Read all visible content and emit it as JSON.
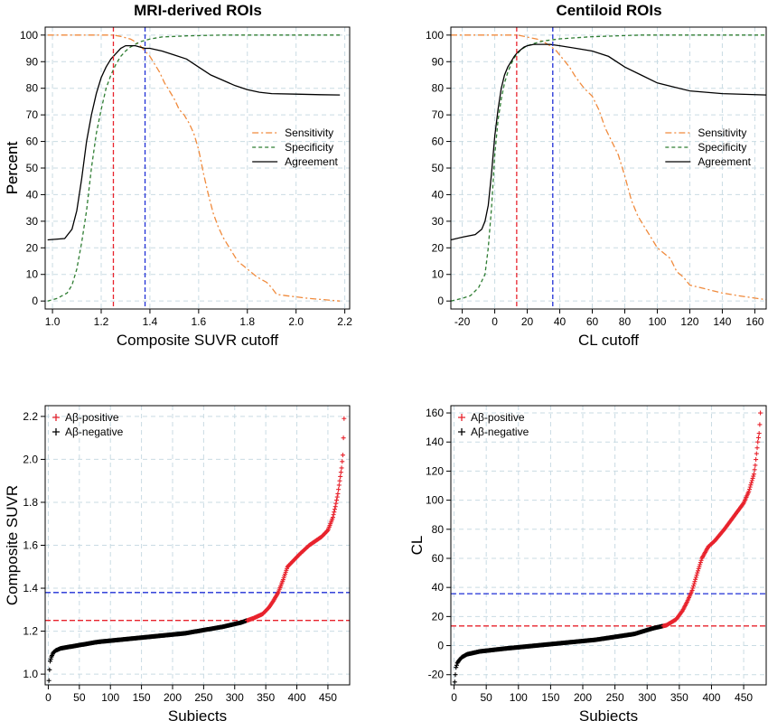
{
  "colors": {
    "sensitivity": "#f08a3c",
    "specificity": "#2e7d32",
    "agreement": "#000000",
    "blue_cutoff": "#1f2fd6",
    "red_cutoff": "#e8232d",
    "positive": "#e8232d",
    "negative": "#000000",
    "grid": "#c9dbe3"
  },
  "chart_data": [
    {
      "type": "line",
      "title": "MRI-derived ROIs",
      "xlabel": "Composite SUVR cutoff",
      "ylabel": "Percent",
      "xlim": [
        0.97,
        2.22
      ],
      "ylim": [
        -3,
        103
      ],
      "xticks": [
        1.0,
        1.2,
        1.4,
        1.6,
        1.8,
        2.0,
        2.2
      ],
      "xtick_labels": [
        "1.0",
        "1.2",
        "1.4",
        "1.6",
        "1.8",
        "2.0",
        "2.2"
      ],
      "yticks": [
        0,
        10,
        20,
        30,
        40,
        50,
        60,
        70,
        80,
        90,
        100
      ],
      "ytick_labels": [
        "0",
        "10",
        "20",
        "30",
        "40",
        "50",
        "60",
        "70",
        "80",
        "90",
        "100"
      ],
      "vlines": [
        {
          "x": 1.25,
          "color": "red"
        },
        {
          "x": 1.38,
          "color": "blue"
        }
      ],
      "legend": [
        "Sensitivity",
        "Specificity",
        "Agreement"
      ],
      "legend_position": "center-right",
      "series": [
        {
          "name": "Sensitivity",
          "style": "dashdot",
          "x": [
            0.98,
            1.25,
            1.28,
            1.3,
            1.32,
            1.34,
            1.36,
            1.38,
            1.4,
            1.42,
            1.44,
            1.46,
            1.48,
            1.5,
            1.52,
            1.54,
            1.56,
            1.58,
            1.6,
            1.62,
            1.64,
            1.66,
            1.68,
            1.7,
            1.72,
            1.74,
            1.76,
            1.8,
            1.84,
            1.88,
            1.9,
            1.92,
            1.96,
            2.05,
            2.18
          ],
          "y": [
            100,
            100,
            99.5,
            99,
            98.5,
            97.5,
            96,
            94,
            92,
            89,
            86,
            82,
            79,
            76,
            72,
            70,
            67,
            63,
            57,
            48,
            40,
            33,
            28,
            24,
            21,
            18,
            15,
            12,
            9,
            7,
            5,
            2.5,
            2,
            1,
            0
          ]
        },
        {
          "name": "Specificity",
          "style": "dashed",
          "x": [
            0.98,
            1.02,
            1.06,
            1.08,
            1.1,
            1.12,
            1.14,
            1.16,
            1.18,
            1.2,
            1.22,
            1.24,
            1.26,
            1.28,
            1.3,
            1.32,
            1.34,
            1.36,
            1.4,
            1.45,
            1.55,
            1.7,
            2.18
          ],
          "y": [
            0,
            1,
            3,
            6,
            12,
            22,
            34,
            50,
            63,
            72,
            80,
            85,
            89,
            92,
            94,
            95.5,
            96.5,
            97.5,
            98.5,
            99.3,
            99.7,
            100,
            100
          ]
        },
        {
          "name": "Agreement",
          "style": "solid",
          "x": [
            0.98,
            1.05,
            1.08,
            1.1,
            1.12,
            1.14,
            1.16,
            1.18,
            1.2,
            1.22,
            1.24,
            1.26,
            1.28,
            1.3,
            1.32,
            1.34,
            1.36,
            1.38,
            1.4,
            1.45,
            1.5,
            1.55,
            1.6,
            1.65,
            1.7,
            1.75,
            1.8,
            1.85,
            1.9,
            2.0,
            2.1,
            2.18
          ],
          "y": [
            23,
            23.5,
            27,
            34,
            46,
            60,
            70,
            78,
            84,
            88,
            91,
            93,
            95,
            96,
            96,
            96,
            95.5,
            95,
            95,
            94,
            92.5,
            91,
            88,
            85,
            83,
            81,
            79.5,
            78.5,
            78,
            77.8,
            77.6,
            77.5
          ]
        }
      ]
    },
    {
      "type": "line",
      "title": "Centiloid ROIs",
      "xlabel": "CL cutoff",
      "ylabel": "Percent",
      "xlim": [
        -27,
        167
      ],
      "ylim": [
        -3,
        103
      ],
      "xticks": [
        -20,
        0,
        20,
        40,
        60,
        80,
        100,
        120,
        140,
        160
      ],
      "xtick_labels": [
        "-20",
        "0",
        "20",
        "40",
        "60",
        "80",
        "100",
        "120",
        "140",
        "160"
      ],
      "yticks": [
        0,
        10,
        20,
        30,
        40,
        50,
        60,
        70,
        80,
        90,
        100
      ],
      "ytick_labels": [
        "0",
        "10",
        "20",
        "30",
        "40",
        "50",
        "60",
        "70",
        "80",
        "90",
        "100"
      ],
      "vlines": [
        {
          "x": 13.5,
          "color": "red"
        },
        {
          "x": 35.7,
          "color": "blue"
        }
      ],
      "legend": [
        "Sensitivity",
        "Specificity",
        "Agreement"
      ],
      "legend_position": "center-right",
      "series": [
        {
          "name": "Sensitivity",
          "style": "dashdot",
          "x": [
            -27,
            14,
            18,
            22,
            26,
            30,
            34,
            38,
            42,
            46,
            50,
            55,
            60,
            64,
            68,
            72,
            76,
            80,
            84,
            88,
            92,
            96,
            100,
            104,
            108,
            112,
            116,
            120,
            130,
            140,
            150,
            167
          ],
          "y": [
            100,
            100,
            99.5,
            99,
            98.5,
            97.5,
            96,
            94,
            91,
            88,
            84,
            80,
            77,
            72,
            65,
            60,
            55,
            47,
            38,
            32,
            28,
            24,
            20,
            18,
            16,
            11,
            9,
            6,
            4.5,
            3,
            2,
            0.5
          ]
        },
        {
          "name": "Specificity",
          "style": "dashed",
          "x": [
            -27,
            -20,
            -15,
            -10,
            -6,
            -4,
            -2,
            0,
            2,
            4,
            6,
            8,
            10,
            12,
            14,
            16,
            20,
            25,
            30,
            40,
            60,
            90,
            167
          ],
          "y": [
            0,
            1,
            2,
            5,
            10,
            20,
            35,
            55,
            68,
            76,
            82,
            86,
            89,
            91.5,
            93,
            94.5,
            96,
            97,
            97.8,
            98.6,
            99.4,
            100,
            100
          ]
        },
        {
          "name": "Agreement",
          "style": "solid",
          "x": [
            -27,
            -20,
            -12,
            -8,
            -6,
            -4,
            -2,
            0,
            2,
            4,
            6,
            8,
            10,
            12,
            14,
            16,
            18,
            20,
            24,
            28,
            34,
            40,
            50,
            60,
            70,
            80,
            90,
            100,
            110,
            120,
            140,
            167
          ],
          "y": [
            23,
            24,
            25,
            27,
            30,
            36,
            48,
            62,
            72,
            80,
            85,
            88,
            90,
            92,
            93.5,
            94.5,
            95.5,
            96,
            96.5,
            96.5,
            96.5,
            96,
            95,
            94,
            92,
            88,
            85,
            82,
            80.5,
            79,
            78,
            77.5
          ]
        }
      ]
    },
    {
      "type": "scatter",
      "xlabel": "Subjects",
      "ylabel": "Composite SUVR",
      "xlim": [
        -5,
        485
      ],
      "ylim": [
        0.95,
        2.25
      ],
      "xticks": [
        0,
        50,
        100,
        150,
        200,
        250,
        300,
        350,
        400,
        450
      ],
      "xtick_labels": [
        "0",
        "50",
        "100",
        "150",
        "200",
        "250",
        "300",
        "350",
        "400",
        "450"
      ],
      "yticks": [
        1.0,
        1.2,
        1.4,
        1.6,
        1.8,
        2.0,
        2.2
      ],
      "ytick_labels": [
        "1.0",
        "1.2",
        "1.4",
        "1.6",
        "1.8",
        "2.0",
        "2.2"
      ],
      "hlines": [
        {
          "y": 1.38,
          "color": "blue"
        },
        {
          "y": 1.25,
          "color": "red"
        }
      ],
      "legend": [
        "Aβ-positive",
        "Aβ-negative"
      ],
      "legend_position": "top-left",
      "n_subjects": 476,
      "threshold": 1.25,
      "curve": {
        "x": [
          1,
          2,
          3,
          5,
          8,
          12,
          20,
          40,
          80,
          150,
          220,
          280,
          310,
          330,
          345,
          355,
          362,
          370,
          378,
          385,
          395,
          405,
          420,
          430,
          440,
          450,
          458,
          462,
          466,
          468,
          470,
          472,
          474,
          475,
          476
        ],
        "y": [
          0.97,
          1.02,
          1.06,
          1.08,
          1.1,
          1.11,
          1.12,
          1.13,
          1.15,
          1.17,
          1.19,
          1.22,
          1.24,
          1.26,
          1.28,
          1.31,
          1.34,
          1.38,
          1.44,
          1.5,
          1.53,
          1.56,
          1.6,
          1.62,
          1.64,
          1.67,
          1.73,
          1.78,
          1.84,
          1.88,
          1.92,
          1.96,
          2.02,
          2.1,
          2.19
        ]
      }
    },
    {
      "type": "scatter",
      "xlabel": "Subjects",
      "ylabel": "CL",
      "xlim": [
        -5,
        485
      ],
      "ylim": [
        -27,
        165
      ],
      "xticks": [
        0,
        50,
        100,
        150,
        200,
        250,
        300,
        350,
        400,
        450
      ],
      "xtick_labels": [
        "0",
        "50",
        "100",
        "150",
        "200",
        "250",
        "300",
        "350",
        "400",
        "450"
      ],
      "yticks": [
        -20,
        0,
        20,
        40,
        60,
        80,
        100,
        120,
        140,
        160
      ],
      "ytick_labels": [
        "-20",
        "0",
        "20",
        "40",
        "60",
        "80",
        "100",
        "120",
        "140",
        "160"
      ],
      "hlines": [
        {
          "y": 35.7,
          "color": "blue"
        },
        {
          "y": 13.5,
          "color": "red"
        }
      ],
      "legend": [
        "Aβ-positive",
        "Aβ-negative"
      ],
      "legend_position": "top-left",
      "n_subjects": 476,
      "threshold": 13.5,
      "curve": {
        "x": [
          1,
          2,
          3,
          5,
          8,
          12,
          20,
          40,
          80,
          150,
          220,
          280,
          310,
          330,
          345,
          355,
          362,
          370,
          378,
          385,
          395,
          405,
          420,
          430,
          440,
          450,
          458,
          462,
          466,
          468,
          470,
          472,
          474,
          475,
          476
        ],
        "y": [
          -25,
          -20,
          -15,
          -12,
          -10,
          -8,
          -6,
          -4,
          -2,
          1,
          4,
          8,
          12,
          14,
          18,
          24,
          30,
          38,
          50,
          60,
          68,
          72,
          80,
          86,
          92,
          98,
          106,
          112,
          118,
          124,
          132,
          140,
          146,
          152,
          160
        ]
      }
    }
  ]
}
